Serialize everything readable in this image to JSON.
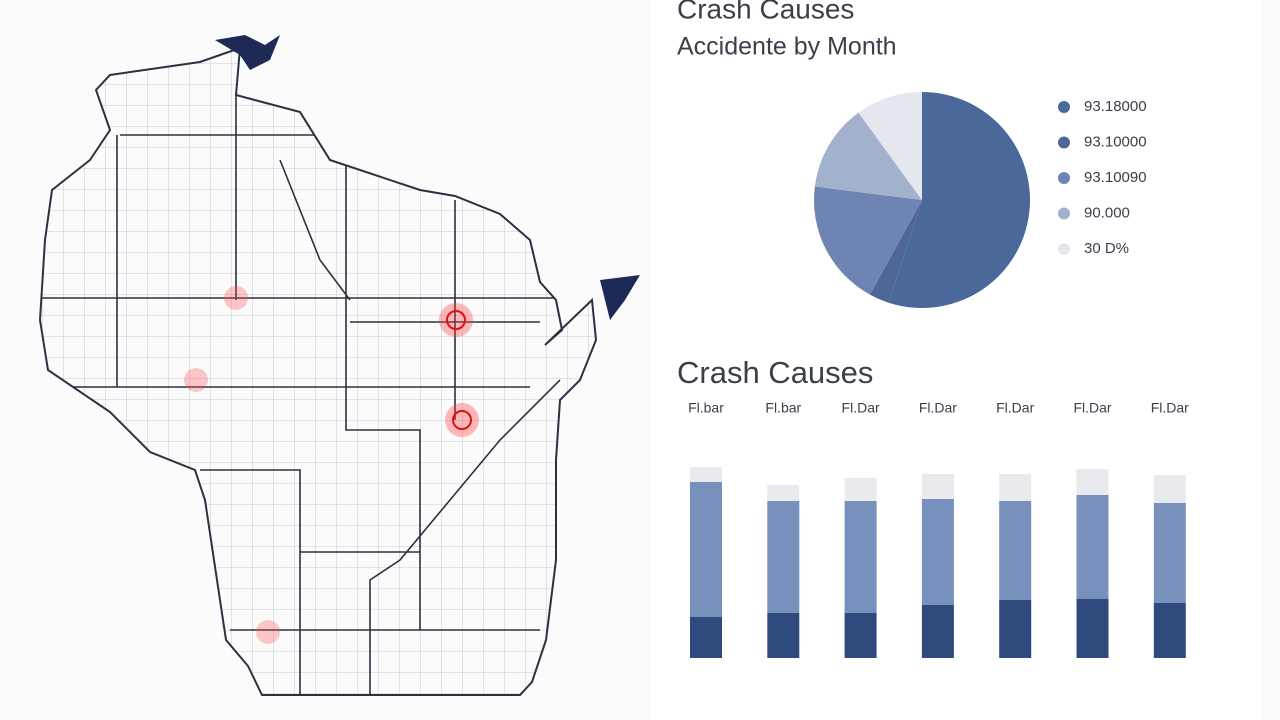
{
  "chart_data": [
    {
      "type": "pie",
      "title": "Crash Causes",
      "subtitle": "Accidente by Month",
      "categories": [
        "93.18000",
        "93.10000",
        "93.10090",
        "90.000",
        "30 D%"
      ],
      "values": [
        55,
        3,
        19,
        13,
        10
      ],
      "colors": [
        "#4a6899",
        "#4d6696",
        "#6e84b3",
        "#a3b2cc",
        "#e4e7ed"
      ]
    },
    {
      "type": "bar",
      "title": "Crash Causes",
      "categories": [
        "Fl.bar",
        "Fl.bar",
        "Fl.Dar",
        "Fl.Dar",
        "Fl.Dar",
        "Fl.Dar",
        "Fl.Dar"
      ],
      "stacked": true,
      "ylim": [
        0,
        200
      ],
      "series": [
        {
          "color": "#2f4b7e",
          "values": [
            41,
            45,
            45,
            53,
            58,
            59,
            55
          ]
        },
        {
          "color": "#7890bc",
          "values": [
            135,
            112,
            112,
            106,
            99,
            104,
            100
          ]
        },
        {
          "color": "#e9eaee",
          "values": [
            15,
            16,
            23,
            25,
            27,
            26,
            28
          ]
        }
      ]
    }
  ]
}
